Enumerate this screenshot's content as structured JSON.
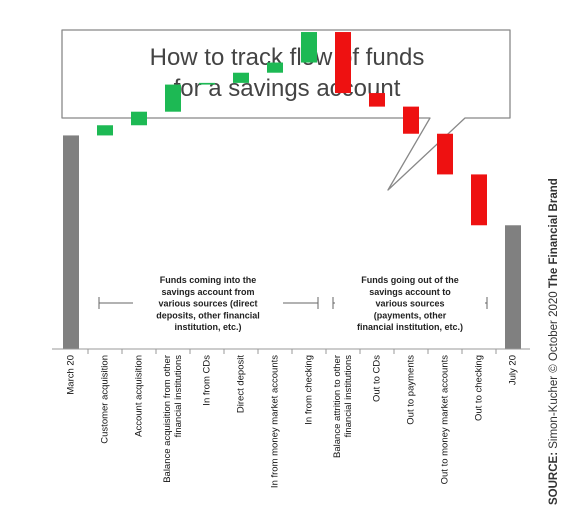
{
  "title_lines": [
    "How to track flow of funds",
    "for a savings account"
  ],
  "source": {
    "label": "SOURCE:",
    "text": "Simon-Kucher © October 2020",
    "brand": "The Financial Brand"
  },
  "annotations": {
    "inflows": [
      "Funds coming into the",
      "savings account from",
      "various sources (direct",
      "deposits, other financial",
      "institution, etc.)"
    ],
    "outflows": [
      "Funds going out of the",
      "savings account to",
      "various sources",
      "(payments, other",
      "financial institution, etc.)"
    ]
  },
  "colors": {
    "total": "#808080",
    "increase": "#1db954",
    "decrease": "#ee1111",
    "bubble_border": "#888888",
    "axis": "#999999"
  },
  "chart_data": {
    "type": "waterfall",
    "title": "How to track flow of funds for a savings account",
    "ylim": [
      0,
      100
    ],
    "grid": false,
    "bars": [
      {
        "label": [
          "March 20"
        ],
        "kind": "total",
        "value": 63
      },
      {
        "label": [
          "Customer acquisition"
        ],
        "kind": "increase",
        "value": 3
      },
      {
        "label": [
          "Account acquisition"
        ],
        "kind": "increase",
        "value": 4
      },
      {
        "label": [
          "Balance acquisition from other",
          "financial institutions"
        ],
        "kind": "increase",
        "value": 8
      },
      {
        "label": [
          "In from CDs"
        ],
        "kind": "increase",
        "value": 0.5
      },
      {
        "label": [
          "Direct deposit"
        ],
        "kind": "increase",
        "value": 3
      },
      {
        "label": [
          "In from money market accounts"
        ],
        "kind": "increase",
        "value": 3
      },
      {
        "label": [
          "In from checking"
        ],
        "kind": "increase",
        "value": 9
      },
      {
        "label": [
          "Balance attrition to other",
          "financial institutions"
        ],
        "kind": "decrease",
        "value": 18
      },
      {
        "label": [
          "Out to CDs"
        ],
        "kind": "decrease",
        "value": 4
      },
      {
        "label": [
          "Out to payments"
        ],
        "kind": "decrease",
        "value": 8
      },
      {
        "label": [
          "Out to money market accounts"
        ],
        "kind": "decrease",
        "value": 12
      },
      {
        "label": [
          "Out to checking"
        ],
        "kind": "decrease",
        "value": 15
      },
      {
        "label": [
          "July 20"
        ],
        "kind": "total",
        "value": 36.5
      }
    ]
  }
}
